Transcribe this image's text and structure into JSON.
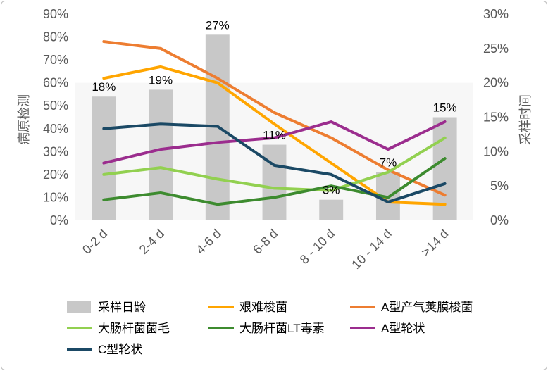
{
  "chart_data": {
    "type": "bar+line",
    "categories": [
      "0-2 d",
      "2-4 d",
      "4-6 d",
      "6-8 d",
      "8 - 10 d",
      "10 - 14 d",
      ">14 d"
    ],
    "y_left": {
      "label": "病原检测",
      "range": [
        0,
        90
      ],
      "ticks": [
        "0%",
        "10%",
        "20%",
        "30%",
        "40%",
        "50%",
        "60%",
        "70%",
        "80%",
        "90%"
      ]
    },
    "y_right": {
      "label": "采样时间",
      "range": [
        0,
        30
      ],
      "ticks": [
        "0%",
        "5%",
        "10%",
        "15%",
        "20%",
        "25%",
        "30%"
      ]
    },
    "bars": {
      "name": "采样日龄",
      "axis": "right",
      "color": "#c8c8c8",
      "values": [
        18,
        19,
        27,
        11,
        3,
        7,
        15
      ],
      "labels": [
        "18%",
        "19%",
        "27%",
        "11%",
        "3%",
        "7%",
        "15%"
      ]
    },
    "series": [
      {
        "name": "艰难梭菌",
        "color": "#ffa500",
        "values": [
          62,
          67,
          60,
          42,
          25,
          8,
          7
        ]
      },
      {
        "name": "A型产气荚膜梭菌",
        "color": "#ed7d31",
        "values": [
          78,
          75,
          62,
          47,
          36,
          22,
          11
        ]
      },
      {
        "name": "大肠杆菌菌毛",
        "color": "#92d050",
        "values": [
          20,
          23,
          18,
          14,
          13,
          21,
          36
        ]
      },
      {
        "name": "大肠杆菌LT毒素",
        "color": "#3d8b2f",
        "values": [
          9,
          12,
          7,
          10,
          15,
          10,
          27
        ]
      },
      {
        "name": "A型轮状",
        "color": "#9b2d8e",
        "values": [
          25,
          31,
          34,
          36,
          43,
          31,
          43
        ]
      },
      {
        "name": "C型轮状",
        "color": "#1b4965",
        "values": [
          40,
          42,
          41,
          24,
          20,
          8,
          16
        ]
      }
    ],
    "legend_position": "bottom",
    "grid": false
  }
}
